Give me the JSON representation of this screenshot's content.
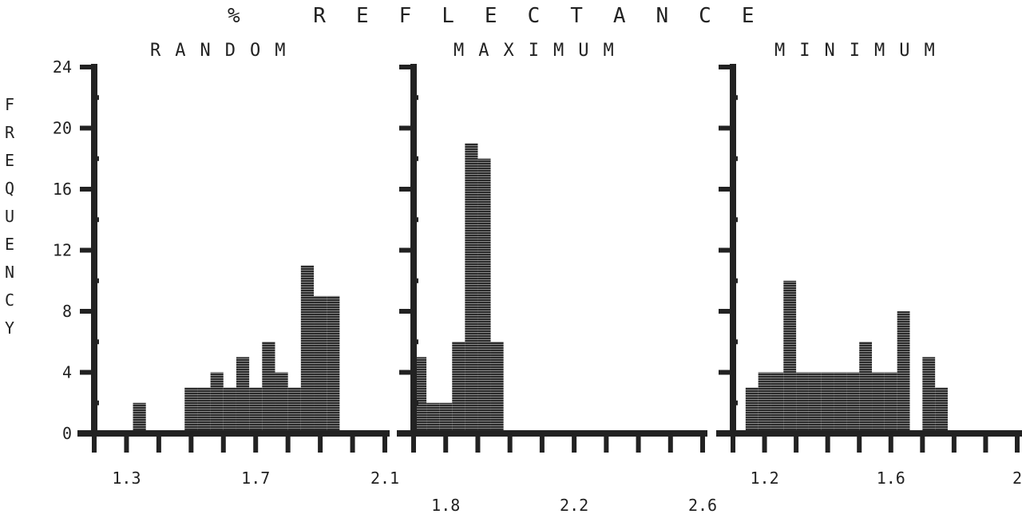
{
  "title": "% REFLECTANCE",
  "ylabel": "FREQUENCY",
  "colors": {
    "ink": "#222222",
    "bar": "#3a3a3a",
    "paper": "#ffffff"
  },
  "chart_data": [
    {
      "type": "bar",
      "title": "RANDOM",
      "xlabel": "",
      "ylabel": "FREQUENCY",
      "ylim": [
        0,
        24
      ],
      "xlim": [
        1.2,
        2.1
      ],
      "xticks": [
        "1.3",
        "1.7",
        "2.1"
      ],
      "yticks": [
        "0",
        "4",
        "8",
        "12",
        "16",
        "20",
        "24"
      ],
      "bin_width": 0.04,
      "x": [
        1.32,
        1.36,
        1.4,
        1.44,
        1.48,
        1.52,
        1.56,
        1.6,
        1.64,
        1.68,
        1.72,
        1.76,
        1.8,
        1.84,
        1.88,
        1.92,
        1.96
      ],
      "values": [
        2,
        0,
        0,
        0,
        3,
        3,
        4,
        3,
        5,
        3,
        6,
        4,
        3,
        11,
        9,
        9,
        0
      ]
    },
    {
      "type": "bar",
      "title": "MAXIMUM",
      "xlabel": "",
      "ylabel": "FREQUENCY",
      "ylim": [
        0,
        24
      ],
      "xlim": [
        1.7,
        2.6
      ],
      "xticks": [
        "1.8",
        "2.2",
        "2.6"
      ],
      "yticks": [
        "0",
        "4",
        "8",
        "12",
        "16",
        "20",
        "24"
      ],
      "bin_width": 0.04,
      "x": [
        1.7,
        1.74,
        1.78,
        1.82,
        1.86,
        1.9,
        1.94
      ],
      "values": [
        5,
        2,
        2,
        6,
        19,
        18,
        6
      ]
    },
    {
      "type": "bar",
      "title": "MINIMUM",
      "xlabel": "",
      "ylabel": "FREQUENCY",
      "ylim": [
        0,
        24
      ],
      "xlim": [
        1.1,
        2.0
      ],
      "xticks": [
        "1.2",
        "1.6",
        "2"
      ],
      "yticks": [
        "0",
        "4",
        "8",
        "12",
        "16",
        "20",
        "24"
      ],
      "bin_width": 0.04,
      "x": [
        1.14,
        1.18,
        1.22,
        1.26,
        1.3,
        1.34,
        1.38,
        1.42,
        1.46,
        1.5,
        1.54,
        1.58,
        1.62,
        1.66,
        1.7,
        1.74,
        1.78,
        1.82
      ],
      "values": [
        3,
        4,
        4,
        10,
        4,
        4,
        4,
        4,
        4,
        6,
        4,
        4,
        8,
        0,
        5,
        3,
        0,
        0
      ]
    }
  ]
}
